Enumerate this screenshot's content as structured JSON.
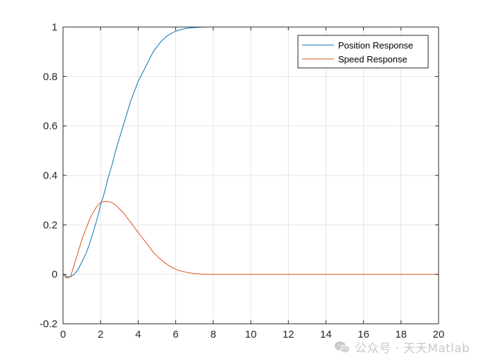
{
  "chart_data": {
    "type": "line",
    "title": "",
    "xlabel": "",
    "ylabel": "",
    "xlim": [
      0,
      20
    ],
    "ylim": [
      -0.2,
      1
    ],
    "xticks": [
      0,
      2,
      4,
      6,
      8,
      10,
      12,
      14,
      16,
      18,
      20
    ],
    "yticks": [
      -0.2,
      0,
      0.2,
      0.4,
      0.6,
      0.8,
      1
    ],
    "grid": true,
    "legend_position": "top-right",
    "series": [
      {
        "name": "Position Response",
        "color": "#0072BD",
        "x": [
          0,
          0.2,
          0.4,
          0.6,
          0.8,
          1.0,
          1.2,
          1.4,
          1.6,
          1.8,
          2.0,
          2.2,
          2.4,
          2.6,
          2.8,
          3.0,
          3.2,
          3.4,
          3.6,
          3.8,
          4.0,
          4.2,
          4.4,
          4.6,
          4.8,
          5.0,
          5.2,
          5.4,
          5.6,
          5.8,
          6.0,
          6.2,
          6.4,
          6.6,
          6.8,
          7.0,
          7.2,
          7.4,
          7.6,
          7.8,
          8.0,
          9.0,
          10.0,
          12.0,
          14.0,
          16.0,
          18.0,
          20.0
        ],
        "y": [
          0,
          -0.01,
          -0.01,
          0,
          0.02,
          0.05,
          0.08,
          0.12,
          0.17,
          0.22,
          0.28,
          0.33,
          0.39,
          0.44,
          0.5,
          0.55,
          0.6,
          0.65,
          0.7,
          0.74,
          0.78,
          0.81,
          0.84,
          0.87,
          0.9,
          0.92,
          0.94,
          0.955,
          0.967,
          0.976,
          0.983,
          0.988,
          0.992,
          0.995,
          0.997,
          0.998,
          0.999,
          0.9995,
          1.0,
          1.0,
          1.0,
          1.0,
          1.0,
          1.0,
          1.0,
          1.0,
          1.0,
          1.0
        ]
      },
      {
        "name": "Speed Response",
        "color": "#D95319",
        "x": [
          0,
          0.2,
          0.4,
          0.6,
          0.8,
          1.0,
          1.2,
          1.4,
          1.6,
          1.8,
          2.0,
          2.2,
          2.4,
          2.6,
          2.8,
          3.0,
          3.2,
          3.4,
          3.6,
          3.8,
          4.0,
          4.2,
          4.4,
          4.6,
          4.8,
          5.0,
          5.2,
          5.4,
          5.6,
          5.8,
          6.0,
          6.2,
          6.4,
          6.6,
          6.8,
          7.0,
          7.2,
          7.4,
          7.6,
          7.8,
          8.0,
          9.0,
          10.0,
          12.0,
          14.0,
          16.0,
          18.0,
          20.0
        ],
        "y": [
          0,
          -0.015,
          -0.01,
          0.04,
          0.09,
          0.14,
          0.18,
          0.22,
          0.25,
          0.275,
          0.29,
          0.295,
          0.295,
          0.29,
          0.28,
          0.265,
          0.25,
          0.23,
          0.21,
          0.19,
          0.17,
          0.15,
          0.13,
          0.11,
          0.09,
          0.075,
          0.06,
          0.048,
          0.037,
          0.028,
          0.021,
          0.015,
          0.011,
          0.008,
          0.005,
          0.003,
          0.002,
          0.001,
          0.0008,
          0.0004,
          0,
          0,
          0,
          0,
          0,
          0,
          0,
          0
        ]
      }
    ]
  },
  "watermark": {
    "text": "公众号 · 天天Matlab",
    "icon": "wechat-icon"
  }
}
